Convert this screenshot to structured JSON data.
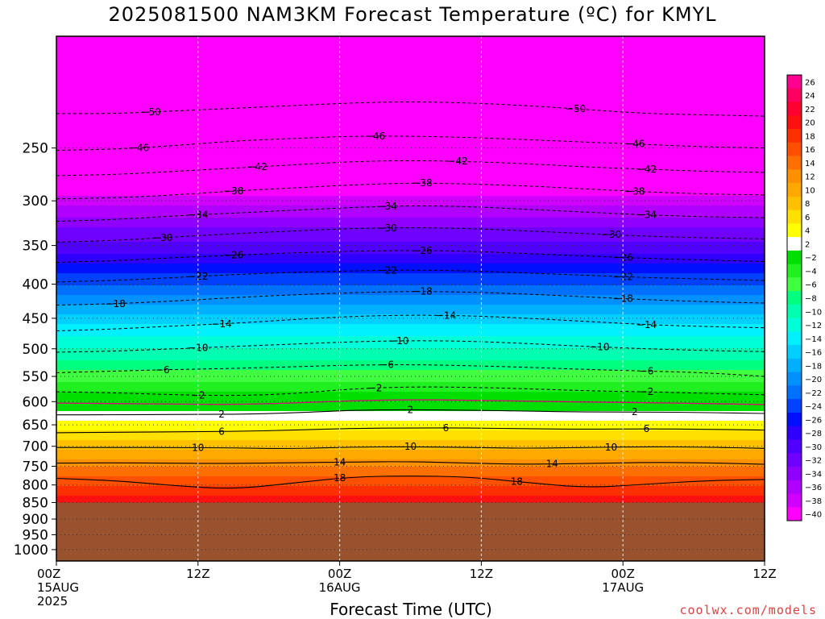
{
  "title": "2025081500 NAM3KM Forecast Temperature (ºC) for KMYL",
  "credit": "coolwx.com/models",
  "chart_data": {
    "type": "heatmap",
    "title": "2025081500 NAM3KM Forecast Temperature (ºC) for KMYL",
    "xlabel": "Forecast Time (UTC)",
    "ylabel": "",
    "y_scale": "log",
    "y_inverted": true,
    "ylim": [
      1040,
      170
    ],
    "xlim": [
      0,
      60
    ],
    "grid": true,
    "underground_below": 850,
    "underground_color": "#98532e",
    "x_ticks": [
      {
        "x": 0,
        "lines": [
          "00Z",
          "15AUG",
          "2025"
        ]
      },
      {
        "x": 12,
        "lines": [
          "12Z"
        ]
      },
      {
        "x": 24,
        "lines": [
          "00Z",
          "16AUG"
        ]
      },
      {
        "x": 36,
        "lines": [
          "12Z"
        ]
      },
      {
        "x": 48,
        "lines": [
          "00Z",
          "17AUG"
        ]
      },
      {
        "x": 60,
        "lines": [
          "12Z"
        ]
      }
    ],
    "y_ticks": [
      "250",
      "300",
      "350",
      "400",
      "450",
      "500",
      "550",
      "600",
      "650",
      "700",
      "750",
      "800",
      "850",
      "900",
      "950",
      "1000"
    ],
    "colorbar": {
      "labels": [
        "26",
        "24",
        "22",
        "20",
        "18",
        "16",
        "14",
        "12",
        "10",
        "8",
        "6",
        "4",
        "2",
        "-2",
        "-4",
        "-6",
        "-8",
        "-10",
        "-12",
        "-14",
        "-16",
        "-18",
        "-20",
        "-22",
        "-24",
        "-26",
        "-28",
        "-30",
        "-32",
        "-34",
        "-36",
        "-38",
        "-40"
      ],
      "colors": [
        "#ff0090",
        "#ff0060",
        "#ff0030",
        "#ff1010",
        "#ff3000",
        "#ff5000",
        "#ff7000",
        "#ff9000",
        "#ffa800",
        "#ffc000",
        "#ffe000",
        "#ffff00",
        "#ffffff",
        "#00e000",
        "#20f020",
        "#40ff40",
        "#00ff80",
        "#00ffb0",
        "#00ffd8",
        "#00f0ff",
        "#00d0ff",
        "#00b0ff",
        "#0090ff",
        "#0070ff",
        "#0040ff",
        "#0010ff",
        "#3000ff",
        "#5000ff",
        "#7000ff",
        "#9000ff",
        "#b000ff",
        "#d000ff",
        "#ff00ff"
      ]
    },
    "temperature_profile": [
      {
        "p": 170,
        "t": -62
      },
      {
        "p": 200,
        "t": -55
      },
      {
        "p": 230,
        "t": -50
      },
      {
        "p": 250,
        "t": -47
      },
      {
        "p": 275,
        "t": -42
      },
      {
        "p": 300,
        "t": -37
      },
      {
        "p": 330,
        "t": -32
      },
      {
        "p": 360,
        "t": -28
      },
      {
        "p": 400,
        "t": -22
      },
      {
        "p": 450,
        "t": -15
      },
      {
        "p": 500,
        "t": -10
      },
      {
        "p": 550,
        "t": -5
      },
      {
        "p": 600,
        "t": 0
      },
      {
        "p": 650,
        "t": 5
      },
      {
        "p": 700,
        "t": 9
      },
      {
        "p": 750,
        "t": 14
      },
      {
        "p": 800,
        "t": 18
      },
      {
        "p": 850,
        "t": 21
      }
    ],
    "contours": [
      {
        "level": -50,
        "p": [
          222,
          222,
          220,
          218,
          216,
          214,
          213,
          214,
          216,
          219,
          222,
          223,
          224
        ],
        "labels": [
          {
            "x": 8,
            "text": "50"
          },
          {
            "x": 44,
            "text": "50"
          }
        ]
      },
      {
        "level": -46,
        "p": [
          252,
          251,
          248,
          244,
          242,
          240,
          240,
          241,
          243,
          245,
          247,
          249,
          250
        ],
        "labels": [
          {
            "x": 7,
            "text": "46"
          },
          {
            "x": 27,
            "text": "46"
          },
          {
            "x": 49,
            "text": "46"
          }
        ]
      },
      {
        "level": -42,
        "p": [
          275,
          274,
          271,
          268,
          265,
          262,
          261,
          262,
          264,
          267,
          269,
          271,
          272
        ],
        "labels": [
          {
            "x": 17,
            "text": "42"
          },
          {
            "x": 34,
            "text": "42"
          },
          {
            "x": 50,
            "text": "42"
          }
        ]
      },
      {
        "level": -38,
        "p": [
          298,
          297,
          294,
          290,
          287,
          284,
          282,
          283,
          285,
          288,
          291,
          293,
          294
        ],
        "labels": [
          {
            "x": 15,
            "text": "38"
          },
          {
            "x": 31,
            "text": "38"
          },
          {
            "x": 49,
            "text": "38"
          }
        ]
      },
      {
        "level": -34,
        "p": [
          322,
          320,
          316,
          313,
          310,
          307,
          305,
          306,
          309,
          312,
          315,
          317,
          318
        ],
        "labels": [
          {
            "x": 12,
            "text": "34"
          },
          {
            "x": 28,
            "text": "34"
          },
          {
            "x": 50,
            "text": "34"
          }
        ]
      },
      {
        "level": -30,
        "p": [
          346,
          344,
          340,
          336,
          333,
          330,
          329,
          330,
          333,
          336,
          339,
          341,
          342
        ],
        "labels": [
          {
            "x": 9,
            "text": "30"
          },
          {
            "x": 28,
            "text": "30"
          },
          {
            "x": 47,
            "text": "30"
          }
        ]
      },
      {
        "level": -26,
        "p": [
          371,
          369,
          365,
          362,
          359,
          357,
          356,
          357,
          360,
          363,
          366,
          368,
          370
        ],
        "labels": [
          {
            "x": 15,
            "text": "26"
          },
          {
            "x": 31,
            "text": "26"
          },
          {
            "x": 48,
            "text": "26"
          }
        ]
      },
      {
        "level": -22,
        "p": [
          397,
          395,
          391,
          387,
          384,
          382,
          381,
          382,
          385,
          388,
          391,
          393,
          395
        ],
        "labels": [
          {
            "x": 12,
            "text": "22"
          },
          {
            "x": 28,
            "text": "22"
          },
          {
            "x": 48,
            "text": "22"
          }
        ]
      },
      {
        "level": -18,
        "p": [
          430,
          428,
          424,
          419,
          415,
          412,
          410,
          411,
          414,
          418,
          422,
          425,
          427
        ],
        "labels": [
          {
            "x": 5,
            "text": "18"
          },
          {
            "x": 31,
            "text": "18"
          },
          {
            "x": 48,
            "text": "18"
          }
        ]
      },
      {
        "level": -14,
        "p": [
          470,
          467,
          462,
          458,
          452,
          447,
          445,
          446,
          450,
          455,
          460,
          463,
          465
        ],
        "labels": [
          {
            "x": 14,
            "text": "14"
          },
          {
            "x": 33,
            "text": "14"
          },
          {
            "x": 50,
            "text": "14"
          }
        ]
      },
      {
        "level": -10,
        "p": [
          506,
          504,
          500,
          496,
          492,
          488,
          486,
          487,
          491,
          496,
          500,
          503,
          505
        ],
        "labels": [
          {
            "x": 12,
            "text": "10"
          },
          {
            "x": 29,
            "text": "10"
          },
          {
            "x": 46,
            "text": "10"
          }
        ]
      },
      {
        "level": -6,
        "p": [
          543,
          540,
          537,
          535,
          532,
          529,
          528,
          530,
          533,
          537,
          540,
          543,
          550
        ],
        "labels": [
          {
            "x": 9,
            "text": "6"
          },
          {
            "x": 28,
            "text": "6"
          },
          {
            "x": 50,
            "text": "6"
          }
        ]
      },
      {
        "level": -2,
        "p": [
          580,
          582,
          586,
          588,
          584,
          574,
          570,
          571,
          574,
          578,
          580,
          583,
          586
        ],
        "labels": [
          {
            "x": 12,
            "text": "2"
          },
          {
            "x": 27,
            "text": "2"
          },
          {
            "x": 50,
            "text": "2"
          }
        ]
      },
      {
        "level": 0,
        "p": [
          603,
          604,
          605,
          606,
          603,
          598,
          596,
          597,
          599,
          601,
          602,
          604,
          606
        ],
        "labels": []
      },
      {
        "level": 2,
        "p": [
          628,
          628,
          627,
          627,
          624,
          618,
          617,
          618,
          620,
          622,
          622,
          623,
          625
        ],
        "labels": [
          {
            "x": 14,
            "text": "2"
          },
          {
            "x": 30,
            "text": "2"
          },
          {
            "x": 49,
            "text": "2"
          }
        ]
      },
      {
        "level": 6,
        "p": [
          668,
          667,
          666,
          665,
          662,
          658,
          657,
          657,
          659,
          660,
          659,
          660,
          662
        ],
        "labels": [
          {
            "x": 14,
            "text": "6"
          },
          {
            "x": 33,
            "text": "6"
          },
          {
            "x": 50,
            "text": "6"
          }
        ]
      },
      {
        "level": 10,
        "p": [
          703,
          703,
          703,
          704,
          706,
          702,
          701,
          703,
          705,
          703,
          701,
          702,
          705
        ],
        "labels": [
          {
            "x": 12,
            "text": "10"
          },
          {
            "x": 30,
            "text": "10"
          },
          {
            "x": 47,
            "text": "10"
          }
        ]
      },
      {
        "level": 14,
        "p": [
          742,
          741,
          742,
          743,
          741,
          739,
          738,
          742,
          745,
          743,
          740,
          741,
          745
        ],
        "labels": [
          {
            "x": 24,
            "text": "14"
          },
          {
            "x": 42,
            "text": "14"
          }
        ]
      },
      {
        "level": 18,
        "p": [
          782,
          788,
          802,
          812,
          795,
          778,
          775,
          778,
          794,
          808,
          798,
          788,
          785
        ],
        "labels": [
          {
            "x": 24,
            "text": "18"
          },
          {
            "x": 39,
            "text": "18"
          }
        ]
      }
    ]
  }
}
